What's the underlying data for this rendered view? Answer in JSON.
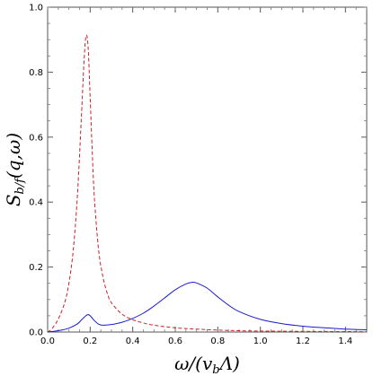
{
  "chart_data": {
    "type": "line",
    "xlabel": "ω/(v_bΛ)",
    "xlabel_parts": {
      "main": "ω/(v",
      "sub": "b",
      "end": "Λ)"
    },
    "ylabel": "S_b/f(q,ω)",
    "ylabel_parts": {
      "main": "S",
      "sub": "b/f",
      "end": "(q,ω)"
    },
    "xlim": [
      0.0,
      1.5
    ],
    "ylim": [
      0.0,
      1.0
    ],
    "x_ticks": [
      0.0,
      0.2,
      0.4,
      0.6,
      0.8,
      1.0,
      1.2,
      1.4
    ],
    "x_tick_labels": [
      "0.0",
      "0.2",
      "0.4",
      "0.6",
      "0.8",
      "1.0",
      "1.2",
      "1.4"
    ],
    "y_ticks": [
      0.0,
      0.2,
      0.4,
      0.6,
      0.8,
      1.0
    ],
    "y_tick_labels": [
      "0.0",
      "0.2",
      "0.4",
      "0.6",
      "0.8",
      "1.0"
    ],
    "grid": false,
    "series": [
      {
        "style": "dashed",
        "color": "#cc2222",
        "x": [
          0.0,
          0.02,
          0.05,
          0.08,
          0.1,
          0.12,
          0.14,
          0.16,
          0.17,
          0.18,
          0.19,
          0.2,
          0.21,
          0.22,
          0.24,
          0.26,
          0.28,
          0.3,
          0.35,
          0.4,
          0.45,
          0.5,
          0.6,
          0.7,
          0.8,
          0.9,
          1.0,
          1.2,
          1.5
        ],
        "y": [
          0.0,
          0.01,
          0.04,
          0.09,
          0.15,
          0.25,
          0.42,
          0.68,
          0.82,
          0.91,
          0.88,
          0.72,
          0.55,
          0.41,
          0.25,
          0.17,
          0.12,
          0.09,
          0.055,
          0.038,
          0.028,
          0.021,
          0.013,
          0.009,
          0.006,
          0.004,
          0.003,
          0.002,
          0.001
        ]
      },
      {
        "style": "solid",
        "color": "#1a1acc",
        "x": [
          0.0,
          0.05,
          0.1,
          0.14,
          0.16,
          0.18,
          0.19,
          0.2,
          0.22,
          0.24,
          0.26,
          0.3,
          0.35,
          0.4,
          0.45,
          0.5,
          0.55,
          0.6,
          0.65,
          0.68,
          0.7,
          0.75,
          0.8,
          0.85,
          0.9,
          1.0,
          1.1,
          1.2,
          1.3,
          1.4,
          1.5
        ],
        "y": [
          0.0,
          0.004,
          0.012,
          0.025,
          0.038,
          0.05,
          0.054,
          0.05,
          0.035,
          0.024,
          0.021,
          0.023,
          0.03,
          0.042,
          0.058,
          0.08,
          0.105,
          0.13,
          0.148,
          0.153,
          0.151,
          0.135,
          0.108,
          0.083,
          0.063,
          0.039,
          0.026,
          0.018,
          0.013,
          0.009,
          0.007
        ]
      }
    ]
  }
}
